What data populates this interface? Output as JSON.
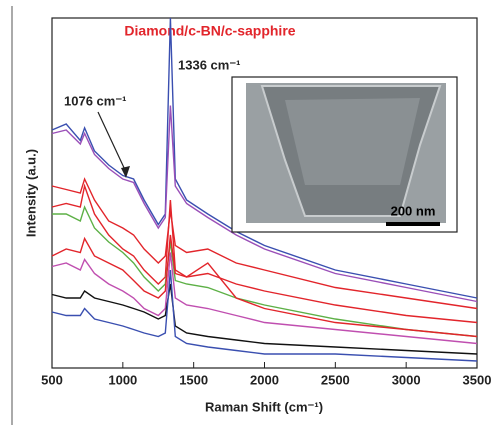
{
  "chart_data": {
    "type": "line",
    "title": "Diamond/c-BN/c-sapphire",
    "xlabel": "Raman Shift (cm⁻¹)",
    "ylabel": "Intensity (a.u.)",
    "annotations": [
      "1336 cm⁻¹",
      "1076 cm⁻¹"
    ],
    "inset_scale_bar": "200 nm",
    "x": [
      500,
      600,
      700,
      730,
      800,
      900,
      1000,
      1076,
      1150,
      1250,
      1300,
      1336,
      1370,
      1450,
      1600,
      1800,
      2000,
      2500,
      3000,
      3500
    ],
    "xlim": [
      500,
      3500
    ],
    "xticks": [
      500,
      1000,
      1500,
      2000,
      2500,
      3000,
      3500
    ],
    "ylim": [
      0,
      100
    ],
    "series": [
      {
        "color": "#3a4fb0",
        "values": [
          68,
          69.7,
          65,
          68.6,
          62,
          58,
          55,
          54,
          48,
          41,
          44,
          100,
          54,
          48,
          44,
          39,
          35,
          28,
          24,
          20
        ]
      },
      {
        "color": "#9a4fb8",
        "values": [
          67,
          68,
          64,
          67,
          61,
          57,
          54,
          53,
          47,
          40,
          43,
          75,
          52,
          47,
          43,
          38,
          34,
          27,
          23,
          19
        ]
      },
      {
        "color": "#e2252b",
        "values": [
          52,
          51,
          50,
          54,
          48,
          42,
          40,
          38,
          34,
          30,
          32,
          45,
          35,
          33,
          34,
          30,
          28,
          23,
          20,
          17
        ]
      },
      {
        "color": "#e2252b",
        "values": [
          46,
          47,
          46,
          52,
          44,
          38,
          34,
          32,
          28,
          24,
          26,
          48,
          28,
          26,
          27,
          24,
          22,
          18,
          15,
          13
        ]
      },
      {
        "color": "#5db046",
        "values": [
          44,
          44,
          42,
          46,
          40,
          36,
          33,
          30,
          26,
          22,
          24,
          36,
          25,
          24,
          23,
          20,
          18,
          14,
          11,
          9
        ]
      },
      {
        "color": "#e2252b",
        "values": [
          32,
          34,
          33,
          37,
          32,
          30,
          28,
          25,
          22,
          20,
          22,
          38,
          27,
          26,
          30,
          20,
          17,
          13,
          11,
          9
        ]
      },
      {
        "color": "#c04fb0",
        "values": [
          29,
          30,
          28,
          31,
          27,
          24,
          22,
          20,
          17,
          15,
          17,
          33,
          20,
          18,
          17,
          15,
          13,
          11,
          9,
          7
        ]
      },
      {
        "color": "#111111",
        "values": [
          21,
          20,
          20,
          22,
          20,
          19,
          18,
          17,
          16,
          14,
          15,
          24,
          12,
          10,
          9,
          8,
          7,
          6,
          5,
          4
        ]
      },
      {
        "color": "#3a4fb0",
        "values": [
          16,
          15,
          15,
          17,
          14,
          13,
          12,
          11,
          10,
          9,
          10,
          28,
          9,
          7,
          6,
          5,
          4,
          4,
          3,
          2
        ]
      }
    ]
  }
}
